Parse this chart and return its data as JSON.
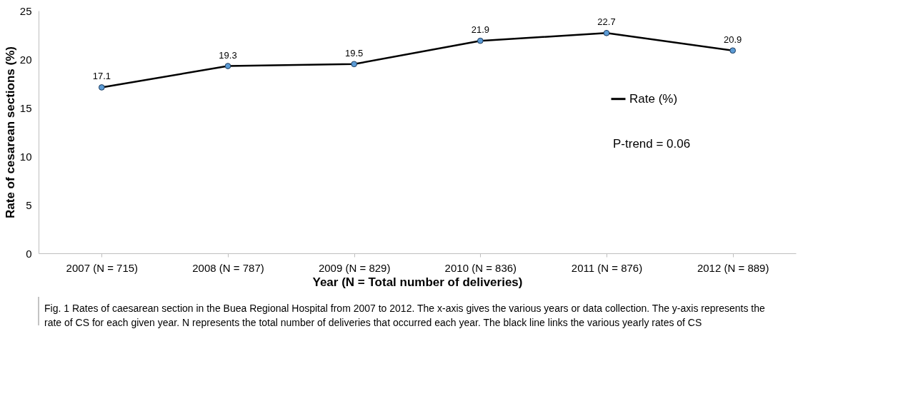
{
  "chart_data": {
    "type": "line",
    "ylabel": "Rate of cesarean sections (%)",
    "xlabel": "Year (N = Total number of deliveries)",
    "categories": [
      "2007 (N = 715)",
      "2008 (N = 787)",
      "2009 (N = 829)",
      "2010 (N = 836)",
      "2011 (N = 876)",
      "2012 (N = 889)"
    ],
    "series": [
      {
        "name": "Rate (%)",
        "color": "#000000",
        "colors": [
          "#5b9bd5",
          "#5b9bd5",
          "#5b9bd5",
          "#5b9bd5",
          "#5b9bd5",
          "#5b9bd5"
        ],
        "values": [
          17.1,
          19.3,
          19.5,
          21.9,
          22.7,
          20.9
        ]
      }
    ],
    "ylim": [
      0,
      25
    ],
    "yticks": [
      0,
      5,
      10,
      15,
      20,
      25
    ],
    "grid": false,
    "legend": "right",
    "marker": "circle",
    "line_style": "solid",
    "data_labels": true,
    "annotations": [
      "P-trend = 0.06",
      "Fig. 1 Rates of caesarean section in the Buea Regional Hospital from 2007 to 2012. The x-axis gives the various years or data collection. The y-axis represents the rate of CS for each given year. N represents the total number of deliveries that occurred each year. The black line links the various yearly rates of CS"
    ]
  }
}
